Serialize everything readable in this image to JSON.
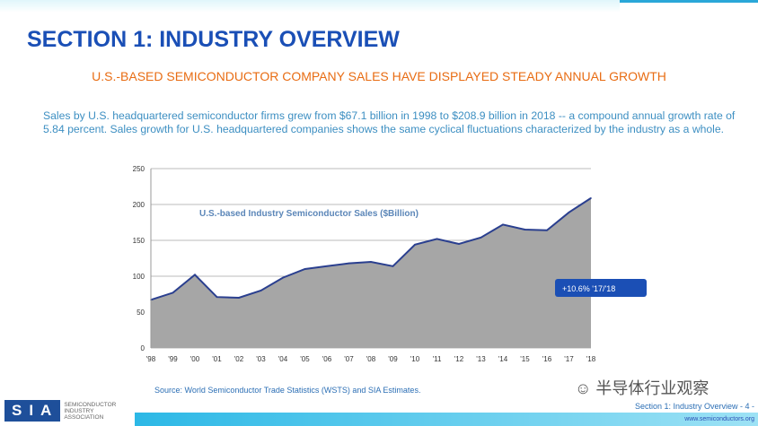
{
  "header": {
    "title": "SECTION 1: INDUSTRY OVERVIEW",
    "subtitle": "U.S.-BASED SEMICONDUCTOR COMPANY SALES HAVE DISPLAYED STEADY ANNUAL GROWTH"
  },
  "body_text": "Sales by U.S. headquartered semiconductor firms grew from $67.1 billion in 1998 to $208.9 billion in 2018 -- a compound annual growth rate of 5.84 percent. Sales growth for U.S. headquartered companies shows the same cyclical fluctuations characterized by the industry as a whole.",
  "chart_data": {
    "type": "area",
    "title": "U.S.-based Industry Semiconductor Sales ($Billion)",
    "categories": [
      "'98",
      "'99",
      "'00",
      "'01",
      "'02",
      "'03",
      "'04",
      "'05",
      "'06",
      "'07",
      "'08",
      "'09",
      "'10",
      "'11",
      "'12",
      "'13",
      "'14",
      "'15",
      "'16",
      "'17",
      "'18"
    ],
    "values": [
      67.1,
      77,
      102,
      71,
      70,
      80,
      98,
      110,
      114,
      118,
      120,
      114,
      144,
      152,
      145,
      154,
      172,
      165,
      164,
      189,
      208.9
    ],
    "yticks": [
      0,
      50,
      100,
      150,
      200,
      250
    ],
    "ylim": [
      0,
      250
    ],
    "annotation": "+10.6% '17/'18",
    "grid": true,
    "colors": {
      "fill": "#a6a6a6",
      "line": "#2a3f8f",
      "annotation": "#1b4fb5"
    }
  },
  "source": "Source: World Semiconductor Trade Statistics (WSTS) and SIA Estimates.",
  "logo": {
    "abbr": "SIA",
    "lines": [
      "SEMICONDUCTOR",
      "INDUSTRY",
      "ASSOCIATION"
    ]
  },
  "watermark": "半导体行业观察",
  "footer": {
    "page": "Section 1: Industry Overview - 4 -",
    "url": "www.semiconductors.org"
  }
}
